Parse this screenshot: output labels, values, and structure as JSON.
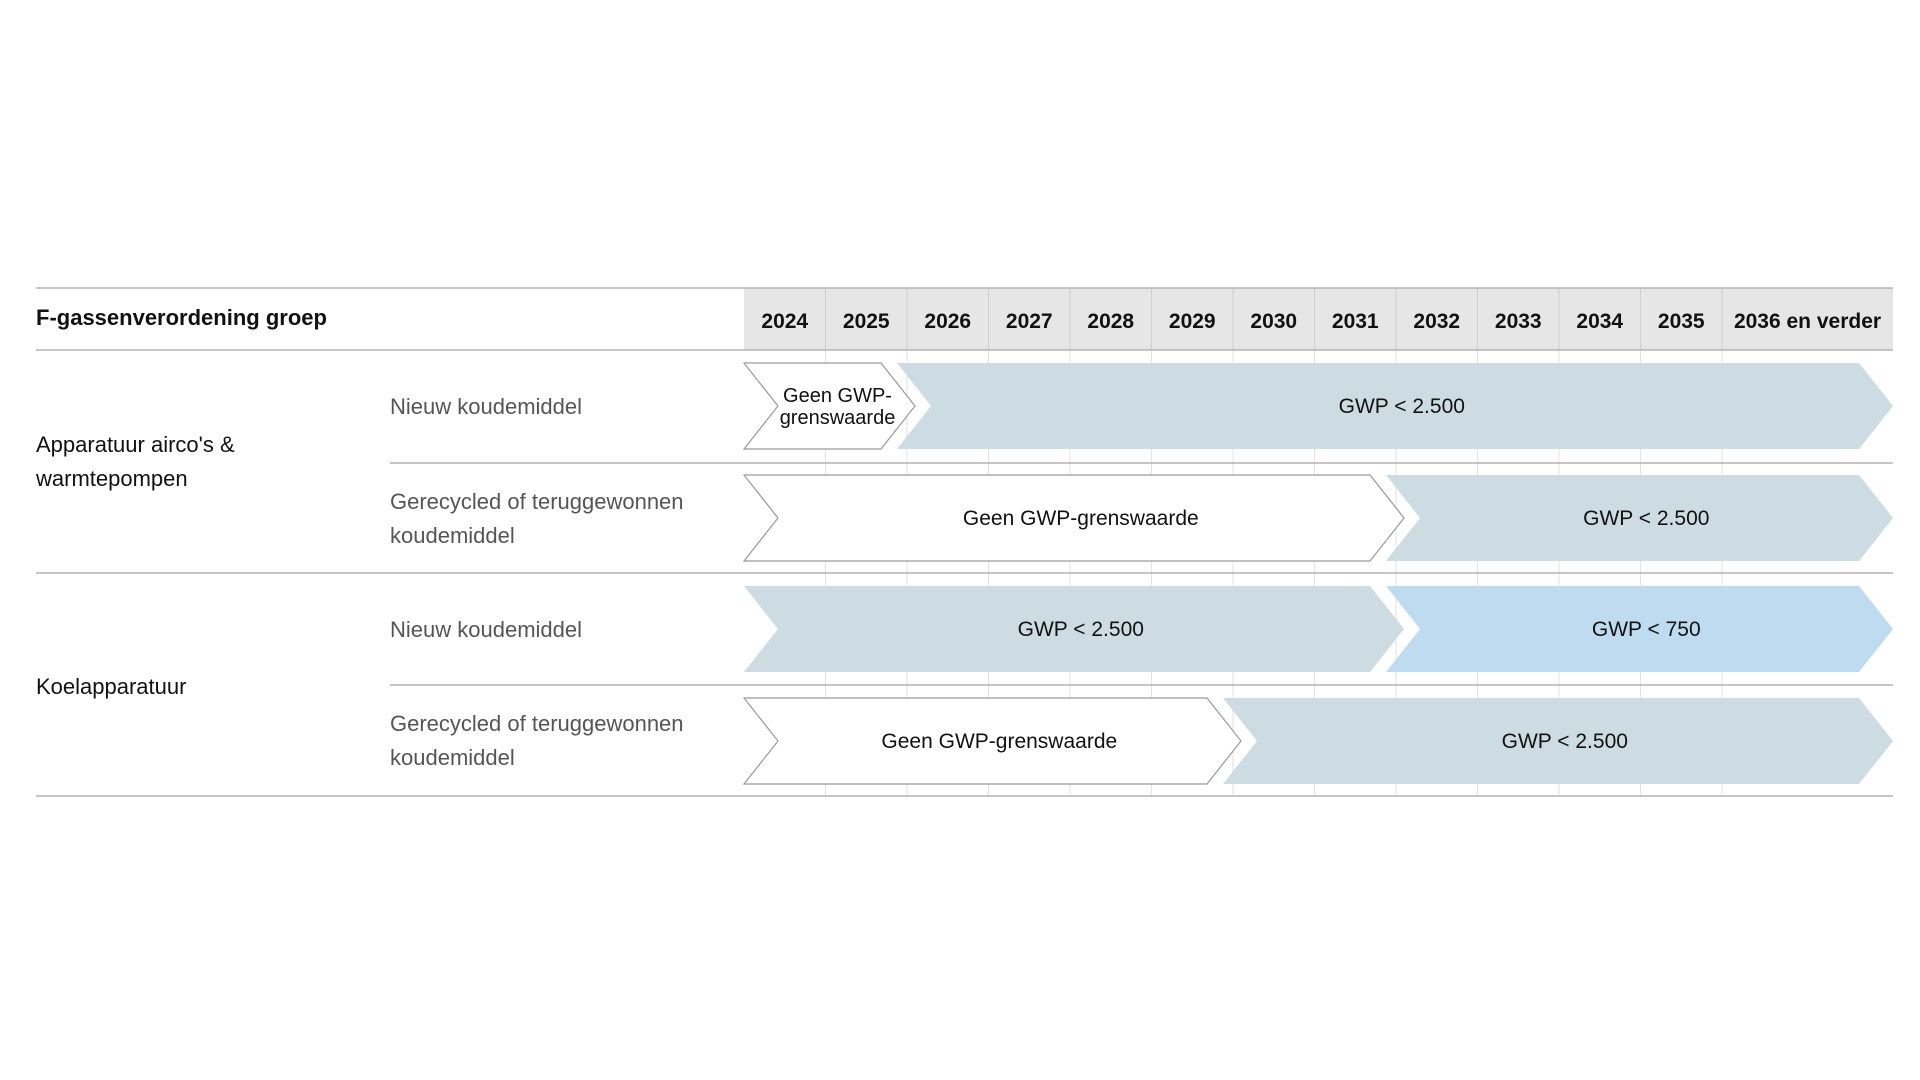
{
  "header": {
    "title": "F-gassenverordening groep",
    "years": [
      "2024",
      "2025",
      "2026",
      "2027",
      "2028",
      "2029",
      "2030",
      "2031",
      "2032",
      "2033",
      "2034",
      "2035",
      "2036 en verder"
    ]
  },
  "groups": [
    {
      "label_lines": [
        "Apparatuur airco's &",
        "warmtepompen"
      ],
      "rows": [
        {
          "label_lines": [
            "Nieuw koudemiddel"
          ],
          "segments": [
            {
              "start_year": "2024",
              "end_year": "2025",
              "label_lines": [
                "Geen GWP-",
                "grenswaarde"
              ],
              "style": "outline"
            },
            {
              "start_year": "2026",
              "end_year": "2036 en verder",
              "label_lines": [
                "GWP < 2.500"
              ],
              "style": "gray"
            }
          ]
        },
        {
          "label_lines": [
            "Gerecycled of teruggewonnen",
            "koudemiddel"
          ],
          "segments": [
            {
              "start_year": "2024",
              "end_year": "2031",
              "label_lines": [
                "Geen GWP-grenswaarde"
              ],
              "style": "outline"
            },
            {
              "start_year": "2032",
              "end_year": "2036 en verder",
              "label_lines": [
                "GWP < 2.500"
              ],
              "style": "gray"
            }
          ]
        }
      ]
    },
    {
      "label_lines": [
        "Koelapparatuur"
      ],
      "rows": [
        {
          "label_lines": [
            "Nieuw koudemiddel"
          ],
          "segments": [
            {
              "start_year": "2024",
              "end_year": "2031",
              "label_lines": [
                "GWP < 2.500"
              ],
              "style": "gray"
            },
            {
              "start_year": "2032",
              "end_year": "2036 en verder",
              "label_lines": [
                "GWP < 750"
              ],
              "style": "blue"
            }
          ]
        },
        {
          "label_lines": [
            "Gerecycled of teruggewonnen",
            "koudemiddel"
          ],
          "segments": [
            {
              "start_year": "2024",
              "end_year": "2029",
              "label_lines": [
                "Geen GWP-grenswaarde"
              ],
              "style": "outline"
            },
            {
              "start_year": "2030",
              "end_year": "2036 en verder",
              "label_lines": [
                "GWP < 2.500"
              ],
              "style": "gray"
            }
          ]
        }
      ]
    }
  ],
  "colors": {
    "header_bg": "#e6e6e6",
    "gray_fill": "#cddbe2",
    "blue_fill": "#bfdbf0",
    "outline_stroke": "#9a9a9a",
    "rule": "#b4b4b4",
    "grid": "#e2e2e2"
  }
}
